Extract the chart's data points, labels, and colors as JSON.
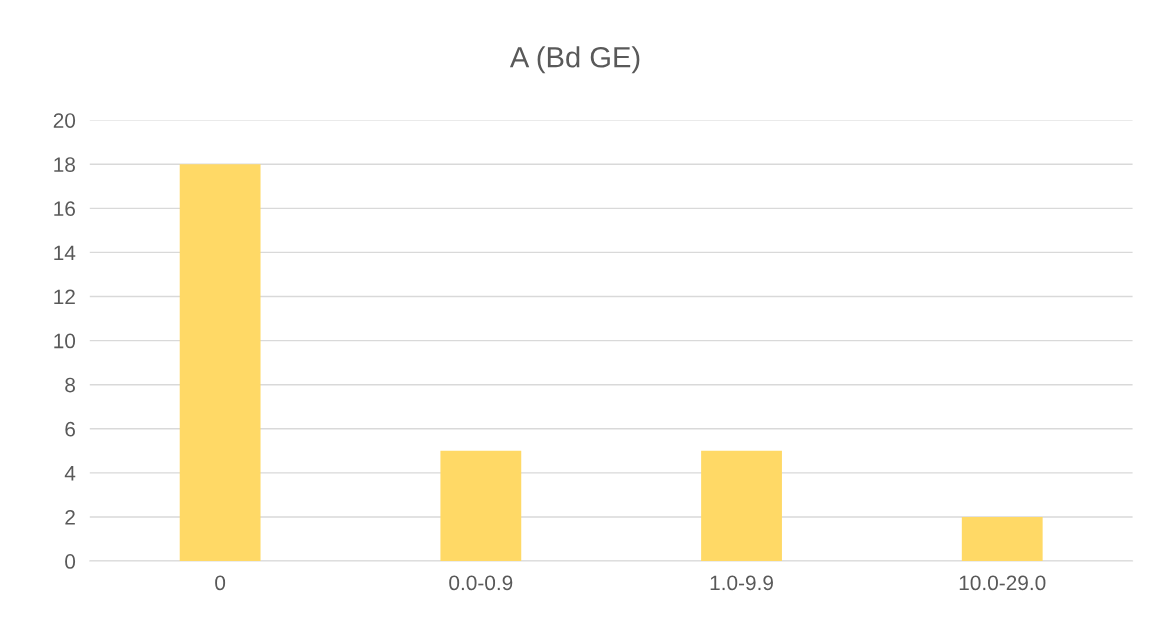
{
  "chart_data": {
    "type": "bar",
    "title": "A (Bd GE)",
    "categories": [
      "0",
      "0.0-0.9",
      "1.0-9.9",
      "10.0-29.0"
    ],
    "values": [
      18,
      5,
      5,
      2
    ],
    "color": "#ffd966",
    "ylim": [
      0,
      20
    ],
    "yticks": [
      0,
      2,
      4,
      6,
      8,
      10,
      12,
      14,
      16,
      18,
      20
    ],
    "grid": "y"
  }
}
